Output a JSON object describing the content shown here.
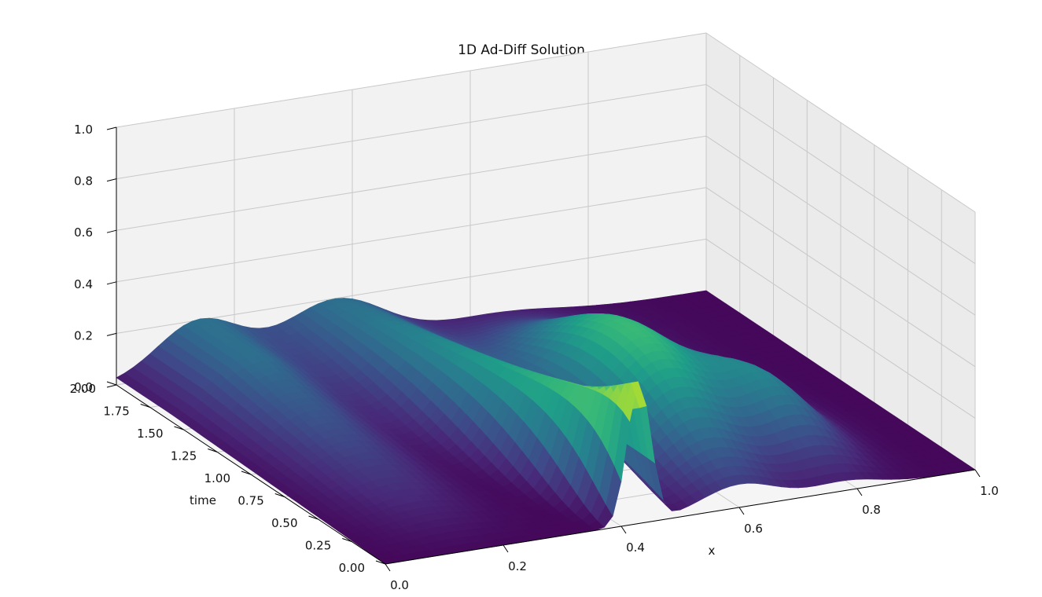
{
  "chart_data": {
    "type": "surface3d",
    "title": "1D Ad-Diff Solution",
    "xlabel": "x",
    "ylabel": "time",
    "zlabel": "",
    "xlim": [
      0,
      1
    ],
    "ylim": [
      0,
      2
    ],
    "zlim": [
      0,
      1
    ],
    "x_ticks": [
      "0.0",
      "0.2",
      "0.4",
      "0.6",
      "0.8",
      "1.0"
    ],
    "y_ticks": [
      "0.00",
      "0.25",
      "0.50",
      "0.75",
      "1.00",
      "1.25",
      "1.50",
      "1.75",
      "2.00"
    ],
    "z_ticks": [
      "0.0",
      "0.2",
      "0.4",
      "0.6",
      "0.8",
      "1.0"
    ],
    "colormap": "viridis",
    "grid": true,
    "surface": {
      "description_source": "values read off the rendered surface",
      "x_samples": [
        0.0,
        0.05,
        0.1,
        0.15,
        0.2,
        0.25,
        0.3,
        0.35,
        0.4,
        0.45,
        0.5,
        0.55,
        0.6,
        0.65,
        0.7,
        0.75,
        0.8,
        0.85,
        0.9,
        0.95,
        1.0
      ],
      "time_samples": [
        0.0,
        0.25,
        0.5,
        0.75,
        1.0,
        1.25,
        1.5,
        1.75,
        2.0
      ],
      "peak_u_at_t0": 0.55,
      "peak_x_at_t0": 0.43,
      "peak_u_at_t2": 0.2
    }
  },
  "colors": {
    "background": "#ffffff",
    "pane_left": "#f2f2f2",
    "pane_right": "#ebebeb",
    "pane_floor": "#f5f5f5",
    "grid": "#c8c8c8",
    "axis_line": "#000000"
  }
}
